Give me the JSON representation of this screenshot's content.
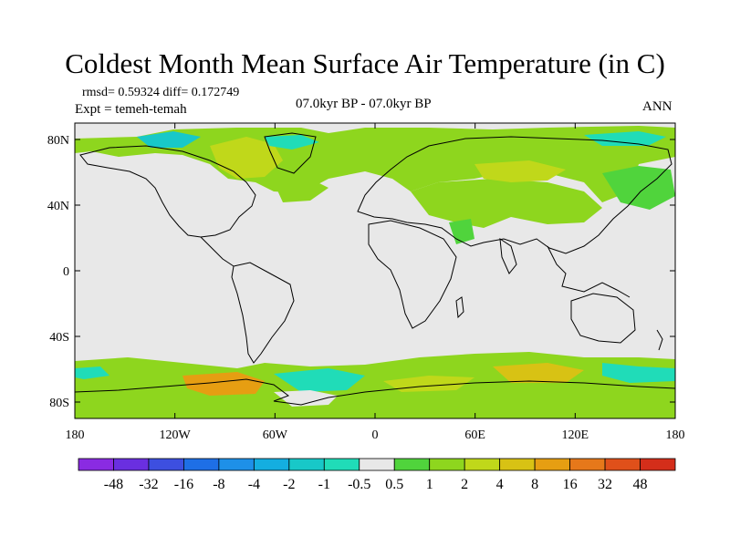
{
  "title": "Coldest Month Mean Surface Air Temperature (in C)",
  "stats": "rmsd= 0.59324 diff= 0.172749",
  "experiment": "Expt = temeh-temah",
  "period": "07.0kyr BP - 07.0kyr BP",
  "season": "ANN",
  "map": {
    "projection": "cylindrical equidistant",
    "lon_range": [
      -180,
      180
    ],
    "lat_range": [
      -90,
      90
    ],
    "lat_ticks": [
      80,
      40,
      0,
      -40,
      -80
    ],
    "lat_labels": [
      "80N",
      "40N",
      "0",
      "40S",
      "80S"
    ],
    "lon_ticks": [
      -180,
      -120,
      -60,
      0,
      60,
      120,
      180
    ],
    "lon_labels": [
      "180",
      "120W",
      "60W",
      "0",
      "60E",
      "120E",
      "180"
    ],
    "background_color": "#e8e8e8"
  },
  "colorbar": {
    "labels": [
      "-48",
      "-32",
      "-16",
      "-8",
      "-4",
      "-2",
      "-1",
      "-0.5",
      "0.5",
      "1",
      "2",
      "4",
      "8",
      "16",
      "32",
      "48"
    ],
    "colors": [
      "#8a2be2",
      "#6a2fe0",
      "#3d4fe0",
      "#1e6fe6",
      "#1e90e8",
      "#14aee0",
      "#18c8c8",
      "#20dcb8",
      "#e8e8e8",
      "#50d43c",
      "#8ed61e",
      "#c0d81a",
      "#d8c214",
      "#e69e12",
      "#e6781a",
      "#e0501a",
      "#d42e1a"
    ]
  }
}
